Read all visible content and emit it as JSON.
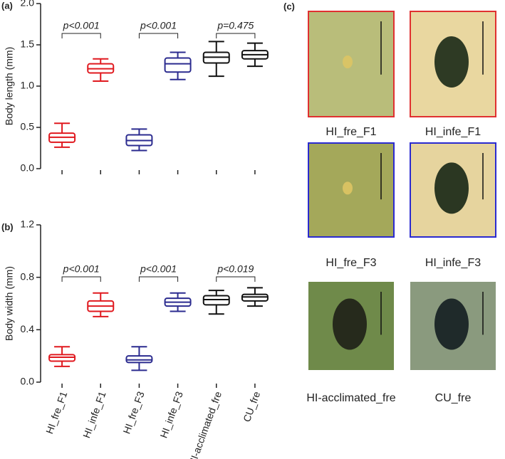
{
  "chart_data": [
    {
      "type": "box",
      "panel_label": "(a)",
      "ylabel": "Body length (mm)",
      "ylim": [
        0,
        2.0
      ],
      "yticks": [
        {
          "value": 0,
          "label": "0.0"
        },
        0.5,
        {
          "value": 1.0,
          "label": "1.0"
        },
        1.5,
        {
          "value": 2.0,
          "label": "2.0"
        }
      ],
      "colors": [
        "#e0191f",
        "#e0191f",
        "#2b2b8f",
        "#2b2b8f",
        "#111111",
        "#111111"
      ],
      "boxes": [
        {
          "min": 0.26,
          "q1": 0.32,
          "median": 0.38,
          "q3": 0.43,
          "max": 0.55
        },
        {
          "min": 1.06,
          "q1": 1.16,
          "median": 1.21,
          "q3": 1.27,
          "max": 1.33
        },
        {
          "min": 0.22,
          "q1": 0.28,
          "median": 0.34,
          "q3": 0.41,
          "max": 0.48
        },
        {
          "min": 1.08,
          "q1": 1.17,
          "median": 1.27,
          "q3": 1.34,
          "max": 1.41
        },
        {
          "min": 1.12,
          "q1": 1.28,
          "median": 1.35,
          "q3": 1.41,
          "max": 1.54
        },
        {
          "min": 1.24,
          "q1": 1.33,
          "median": 1.38,
          "q3": 1.43,
          "max": 1.52
        }
      ],
      "annotations": [
        "p<0.001",
        "p<0.001",
        "p=0.475"
      ]
    },
    {
      "type": "box",
      "panel_label": "(b)",
      "ylabel": "Body width (mm)",
      "ylim": [
        0,
        1.2
      ],
      "yticks": [
        {
          "value": 0,
          "label": "0.0"
        },
        0.4,
        0.8,
        1.2
      ],
      "categories": [
        "HI_fre_F1",
        "HI_infe_F1",
        "HI_fre_F3",
        "HI_infe_F3",
        "HI-acclimated_fre",
        "CU_fre"
      ],
      "colors": [
        "#e0191f",
        "#e0191f",
        "#2b2b8f",
        "#2b2b8f",
        "#111111",
        "#111111"
      ],
      "boxes": [
        {
          "min": 0.12,
          "q1": 0.16,
          "median": 0.19,
          "q3": 0.21,
          "max": 0.27
        },
        {
          "min": 0.5,
          "q1": 0.54,
          "median": 0.58,
          "q3": 0.62,
          "max": 0.68
        },
        {
          "min": 0.09,
          "q1": 0.15,
          "median": 0.17,
          "q3": 0.2,
          "max": 0.27
        },
        {
          "min": 0.54,
          "q1": 0.58,
          "median": 0.61,
          "q3": 0.64,
          "max": 0.68
        },
        {
          "min": 0.52,
          "q1": 0.59,
          "median": 0.63,
          "q3": 0.66,
          "max": 0.7
        },
        {
          "min": 0.58,
          "q1": 0.62,
          "median": 0.65,
          "q3": 0.67,
          "max": 0.72
        }
      ],
      "annotations": [
        "p<0.001",
        "p<0.001",
        "p<0.019"
      ]
    }
  ],
  "panel_c": {
    "panel_label": "(c)",
    "photos": [
      {
        "caption": "HI_fre_F1",
        "border": "#e03030",
        "background": "#b9bd7a",
        "aphid": "#d9c466"
      },
      {
        "caption": "HI_infe_F1",
        "border": "#e03030",
        "background": "#e9d7a0",
        "aphid": "#2e3a24"
      },
      {
        "caption": "HI_fre_F3",
        "border": "#2a2ad0",
        "background": "#a4a85a",
        "aphid": "#d8c262"
      },
      {
        "caption": "HI_infe_F3",
        "border": "#2a2ad0",
        "background": "#e6d49e",
        "aphid": "#2b3722"
      },
      {
        "caption": "HI-acclimated_fre",
        "background": "#6f8a4a",
        "aphid": "#262a1c"
      },
      {
        "caption": "CU_fre",
        "background": "#8a9a7e",
        "aphid": "#1f2a2a"
      }
    ]
  }
}
